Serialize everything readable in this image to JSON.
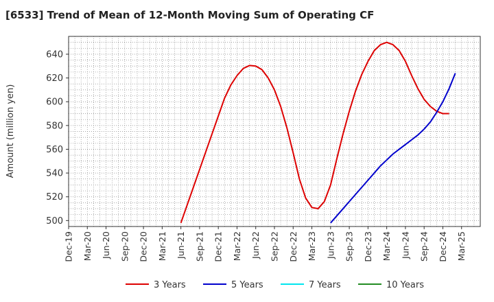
{
  "chart_data": {
    "type": "line",
    "title": "[6533]  Trend of Mean of 12-Month Moving Sum of Operating CF",
    "xlabel": "",
    "ylabel": "Amount (million yen)",
    "ylim": [
      495,
      655
    ],
    "yticks": [
      500,
      520,
      540,
      560,
      580,
      600,
      620,
      640
    ],
    "xlim": [
      0,
      66
    ],
    "x_tick_labels": [
      "Dec-19",
      "Mar-20",
      "Jun-20",
      "Sep-20",
      "Dec-20",
      "Mar-21",
      "Jun-21",
      "Sep-21",
      "Dec-21",
      "Mar-22",
      "Jun-22",
      "Sep-22",
      "Dec-22",
      "Mar-23",
      "Jun-23",
      "Sep-23",
      "Dec-23",
      "Mar-24",
      "Jun-24",
      "Sep-24",
      "Dec-24",
      "Mar-25"
    ],
    "grid": true,
    "legend_position": "bottom",
    "series": [
      {
        "name": "3 Years",
        "color": "#dd0000",
        "start_month_index": 18,
        "values": [
          498,
          513,
          528,
          543,
          558,
          573,
          588,
          603,
          614,
          622,
          628,
          630.5,
          630,
          627,
          620,
          610,
          596,
          578,
          557,
          535,
          519,
          511,
          510,
          516,
          530,
          552,
          573,
          592,
          609,
          623,
          634,
          643,
          648,
          650,
          648,
          643,
          634,
          622,
          611,
          602,
          596,
          592,
          590,
          590
        ]
      },
      {
        "name": "5 Years",
        "color": "#0000cc",
        "start_month_index": 42,
        "values": [
          498,
          504,
          510,
          516,
          522,
          528,
          534,
          540,
          546,
          551,
          556,
          560,
          564,
          568,
          572,
          577,
          583,
          591,
          600,
          611,
          624
        ]
      },
      {
        "name": "7 Years",
        "color": "#00e5ee",
        "start_month_index": 0,
        "values": []
      },
      {
        "name": "10 Years",
        "color": "#228B22",
        "start_month_index": 0,
        "values": []
      }
    ]
  }
}
